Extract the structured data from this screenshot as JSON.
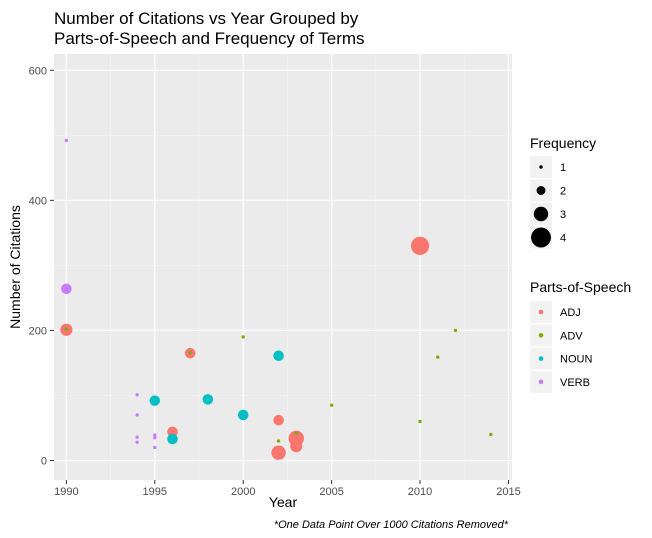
{
  "chart_data": {
    "type": "scatter",
    "title_line1": "Number of Citations vs Year Grouped by",
    "title_line2": "Parts-of-Speech and Frequency of Terms",
    "xlabel": "Year",
    "ylabel": "Number of Citations",
    "caption": "*One Data Point Over 1000 Citations Removed*",
    "xlim": [
      1989.3,
      2015.2
    ],
    "ylim": [
      -30,
      625
    ],
    "x_ticks": [
      1990,
      1995,
      2000,
      2005,
      2010,
      2015
    ],
    "y_ticks": [
      0,
      200,
      400,
      600
    ],
    "grid": true,
    "colors": {
      "ADJ": "#F8766D",
      "ADV": "#7CAE00",
      "NOUN": "#00BFC4",
      "VERB": "#C77CFF"
    },
    "legend_size": {
      "title": "Frequency",
      "levels": [
        1,
        2,
        3,
        4
      ],
      "labels": [
        "1",
        "2",
        "3",
        "4"
      ]
    },
    "legend_color": {
      "title": "Parts-of-Speech",
      "labels": [
        "ADJ",
        "ADV",
        "NOUN",
        "VERB"
      ]
    },
    "points": [
      {
        "x": 1990,
        "y": 492,
        "pos": "VERB",
        "freq": 1
      },
      {
        "x": 1990,
        "y": 264,
        "pos": "VERB",
        "freq": 2.3
      },
      {
        "x": 1990,
        "y": 201,
        "pos": "ADJ",
        "freq": 2.6
      },
      {
        "x": 1990,
        "y": 202,
        "pos": "ADV",
        "freq": 1
      },
      {
        "x": 1994,
        "y": 101,
        "pos": "VERB",
        "freq": 1
      },
      {
        "x": 1994,
        "y": 70,
        "pos": "VERB",
        "freq": 1
      },
      {
        "x": 1994,
        "y": 36,
        "pos": "VERB",
        "freq": 1
      },
      {
        "x": 1994,
        "y": 28,
        "pos": "VERB",
        "freq": 1
      },
      {
        "x": 1995,
        "y": 39,
        "pos": "VERB",
        "freq": 1
      },
      {
        "x": 1995,
        "y": 35,
        "pos": "VERB",
        "freq": 1
      },
      {
        "x": 1995,
        "y": 20,
        "pos": "VERB",
        "freq": 1
      },
      {
        "x": 1995,
        "y": 92,
        "pos": "NOUN",
        "freq": 2.3
      },
      {
        "x": 1996,
        "y": 44,
        "pos": "ADJ",
        "freq": 2.3
      },
      {
        "x": 1996,
        "y": 33,
        "pos": "NOUN",
        "freq": 2.3
      },
      {
        "x": 1997,
        "y": 165,
        "pos": "ADJ",
        "freq": 2.3
      },
      {
        "x": 1997,
        "y": 166,
        "pos": "ADV",
        "freq": 1
      },
      {
        "x": 1998,
        "y": 94,
        "pos": "NOUN",
        "freq": 2.3
      },
      {
        "x": 2000,
        "y": 70,
        "pos": "NOUN",
        "freq": 2.3
      },
      {
        "x": 2000,
        "y": 190,
        "pos": "ADV",
        "freq": 1
      },
      {
        "x": 2002,
        "y": 161,
        "pos": "NOUN",
        "freq": 2.3
      },
      {
        "x": 2002,
        "y": 62,
        "pos": "ADJ",
        "freq": 2.3
      },
      {
        "x": 2002,
        "y": 12,
        "pos": "ADJ",
        "freq": 3
      },
      {
        "x": 2002,
        "y": 30,
        "pos": "ADV",
        "freq": 1
      },
      {
        "x": 2003,
        "y": 34,
        "pos": "ADJ",
        "freq": 3.2
      },
      {
        "x": 2003,
        "y": 22,
        "pos": "ADJ",
        "freq": 2.6
      },
      {
        "x": 2003,
        "y": 42,
        "pos": "ADV",
        "freq": 1
      },
      {
        "x": 2005,
        "y": 85,
        "pos": "ADV",
        "freq": 1
      },
      {
        "x": 2010,
        "y": 330,
        "pos": "ADJ",
        "freq": 3.7
      },
      {
        "x": 2010,
        "y": 60,
        "pos": "ADV",
        "freq": 1
      },
      {
        "x": 2011,
        "y": 159,
        "pos": "ADV",
        "freq": 1
      },
      {
        "x": 2012,
        "y": 200,
        "pos": "ADV",
        "freq": 1
      },
      {
        "x": 2014,
        "y": 40,
        "pos": "ADV",
        "freq": 1
      }
    ]
  }
}
